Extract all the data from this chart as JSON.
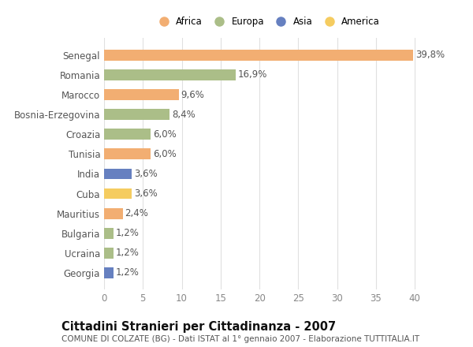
{
  "countries": [
    "Senegal",
    "Romania",
    "Marocco",
    "Bosnia-Erzegovina",
    "Croazia",
    "Tunisia",
    "India",
    "Cuba",
    "Mauritius",
    "Bulgaria",
    "Ucraina",
    "Georgia"
  ],
  "values": [
    39.8,
    16.9,
    9.6,
    8.4,
    6.0,
    6.0,
    3.6,
    3.6,
    2.4,
    1.2,
    1.2,
    1.2
  ],
  "labels": [
    "39,8%",
    "16,9%",
    "9,6%",
    "8,4%",
    "6,0%",
    "6,0%",
    "3,6%",
    "3,6%",
    "2,4%",
    "1,2%",
    "1,2%",
    "1,2%"
  ],
  "continents": [
    "Africa",
    "Europa",
    "Africa",
    "Europa",
    "Europa",
    "Africa",
    "Asia",
    "America",
    "Africa",
    "Europa",
    "Europa",
    "Asia"
  ],
  "colors": {
    "Africa": "#F2AE72",
    "Europa": "#ABBE88",
    "Asia": "#6680C0",
    "America": "#F5CC60"
  },
  "legend_order": [
    "Africa",
    "Europa",
    "Asia",
    "America"
  ],
  "xlim": [
    0,
    42
  ],
  "xticks": [
    0,
    5,
    10,
    15,
    20,
    25,
    30,
    35,
    40
  ],
  "title": "Cittadini Stranieri per Cittadinanza - 2007",
  "subtitle": "COMUNE DI COLZATE (BG) - Dati ISTAT al 1° gennaio 2007 - Elaborazione TUTTITALIA.IT",
  "bg_color": "#FFFFFF",
  "grid_color": "#E0E0E0",
  "label_fontsize": 8.5,
  "tick_fontsize": 8.5,
  "title_fontsize": 10.5,
  "subtitle_fontsize": 7.5
}
